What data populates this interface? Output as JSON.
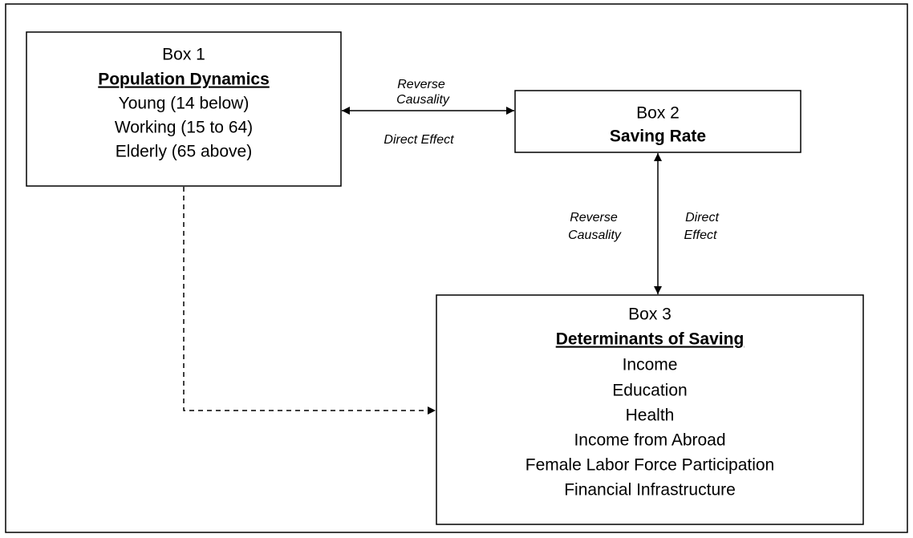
{
  "boxes": [
    {
      "label": "Box 1",
      "title": "Population Dynamics",
      "items": [
        "Young (14 below)",
        "Working (15 to 64)",
        "Elderly (65 above)"
      ]
    },
    {
      "label": "Box 2",
      "title": "Saving Rate",
      "items": []
    },
    {
      "label": "Box 3",
      "title": "Determinants of Saving",
      "items": [
        "Income",
        "Education",
        "Health",
        "Income from Abroad",
        "Female Labor Force Participation",
        "Financial Infrastructure"
      ]
    }
  ],
  "edges": [
    {
      "reverse_label": [
        "Reverse",
        "Causality"
      ],
      "direct_label": [
        "Direct Effect"
      ]
    },
    {
      "reverse_label": [
        "Reverse",
        "Causality"
      ],
      "direct_label": [
        "Direct",
        "Effect"
      ]
    }
  ]
}
